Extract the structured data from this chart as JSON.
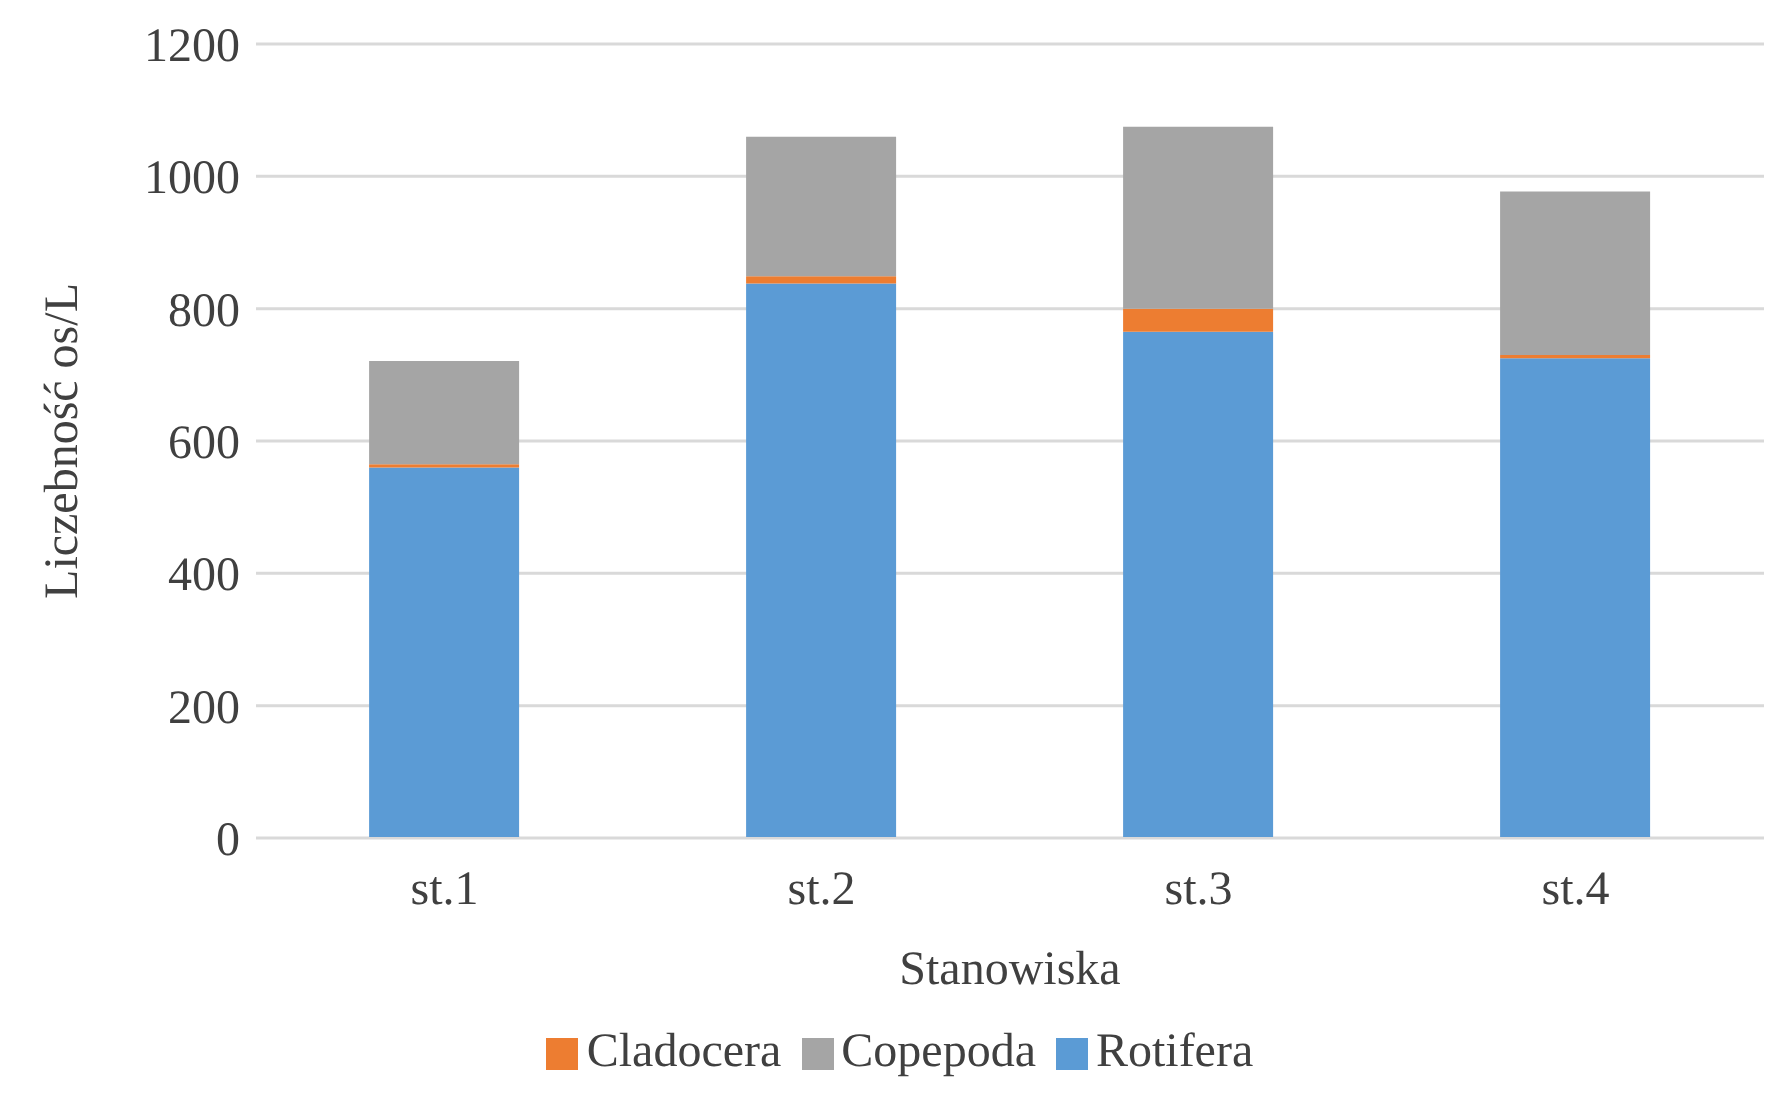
{
  "chart_data": {
    "type": "bar",
    "stacked": true,
    "xlabel": "Stanowiska",
    "ylabel": "Liczebność os/L",
    "categories": [
      "st.1",
      "st.2",
      "st.3",
      "st.4"
    ],
    "series": [
      {
        "name": "Rotifera",
        "color": "#5b9bd5",
        "values": [
          560,
          838,
          765,
          725
        ]
      },
      {
        "name": "Cladocera",
        "color": "#ed7d31",
        "values": [
          5,
          11,
          35,
          5
        ]
      },
      {
        "name": "Copepoda",
        "color": "#a5a5a5",
        "values": [
          156,
          211,
          275,
          247
        ]
      }
    ],
    "ylim": [
      0,
      1200
    ],
    "yticks": [
      0,
      200,
      400,
      600,
      800,
      1000,
      1200
    ],
    "grid": "y",
    "legend": "bottom"
  }
}
